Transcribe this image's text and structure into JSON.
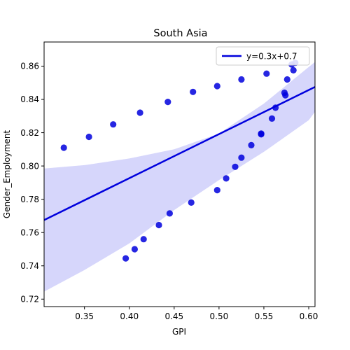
{
  "chart_data": {
    "type": "scatter",
    "title": "South Asia",
    "xlabel": "GPI",
    "ylabel": "Gender_Employment",
    "xlim": [
      0.305,
      0.607
    ],
    "ylim": [
      0.7155,
      0.8745
    ],
    "xticks": [
      "0.35",
      "0.40",
      "0.45",
      "0.50",
      "0.55",
      "0.60"
    ],
    "xtick_values": [
      0.35,
      0.4,
      0.45,
      0.5,
      0.55,
      0.6
    ],
    "yticks": [
      "0.72",
      "0.74",
      "0.76",
      "0.78",
      "0.80",
      "0.82",
      "0.84",
      "0.86"
    ],
    "ytick_values": [
      0.72,
      0.74,
      0.76,
      0.78,
      0.8,
      0.82,
      0.84,
      0.86
    ],
    "grid": false,
    "legend_position": "top-right",
    "points_color": "#0000dd",
    "line_color": "#0000dd",
    "band_color": "#d6d6fb",
    "series": [
      {
        "name": "",
        "points": [
          [
            0.327,
            0.811
          ],
          [
            0.355,
            0.8175
          ],
          [
            0.382,
            0.825
          ],
          [
            0.412,
            0.832
          ],
          [
            0.443,
            0.8385
          ],
          [
            0.471,
            0.8445
          ],
          [
            0.498,
            0.848
          ],
          [
            0.525,
            0.852
          ],
          [
            0.553,
            0.8555
          ],
          [
            0.576,
            0.852
          ],
          [
            0.581,
            0.861
          ],
          [
            0.583,
            0.8575
          ],
          [
            0.585,
            0.862
          ],
          [
            0.573,
            0.844
          ],
          [
            0.574,
            0.8425
          ],
          [
            0.563,
            0.835
          ],
          [
            0.559,
            0.8285
          ],
          [
            0.547,
            0.819
          ],
          [
            0.547,
            0.8195
          ],
          [
            0.536,
            0.8125
          ],
          [
            0.525,
            0.805
          ],
          [
            0.518,
            0.7995
          ],
          [
            0.508,
            0.7925
          ],
          [
            0.498,
            0.7855
          ],
          [
            0.469,
            0.778
          ],
          [
            0.445,
            0.7715
          ],
          [
            0.433,
            0.7645
          ],
          [
            0.416,
            0.756
          ],
          [
            0.406,
            0.75
          ],
          [
            0.396,
            0.7445
          ]
        ]
      }
    ],
    "fit_line": {
      "label": "y=0.3x+0.7",
      "x": [
        0.305,
        0.607
      ],
      "y": [
        0.7675,
        0.8475
      ]
    },
    "confidence_band": {
      "x": [
        0.305,
        0.35,
        0.4,
        0.45,
        0.5,
        0.55,
        0.6,
        0.607
      ],
      "upper": [
        0.7985,
        0.8005,
        0.8045,
        0.81,
        0.8195,
        0.8375,
        0.8595,
        0.8625
      ],
      "lower": [
        0.7245,
        0.7375,
        0.7535,
        0.7735,
        0.7915,
        0.8085,
        0.8275,
        0.8325
      ]
    }
  }
}
